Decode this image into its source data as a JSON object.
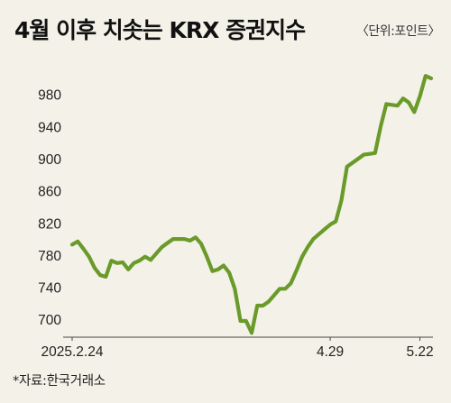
{
  "title": "4월 이후 치솟는 KRX 증권지수",
  "unit_label": "〈단위:포인트〉",
  "source_label": "*자료:한국거래소",
  "colors": {
    "line": "#6a9a2a",
    "background": "#f4f2e8",
    "axis": "#444444"
  },
  "chart_data": {
    "type": "line",
    "title": "4월 이후 치솟는 KRX 증권지수",
    "xlabel": "",
    "ylabel": "",
    "ylim": [
      680,
      1010
    ],
    "yticks": [
      700,
      740,
      780,
      820,
      860,
      900,
      940,
      980
    ],
    "ytick_labels": [
      "700",
      "740",
      "780",
      "820",
      "860",
      "900",
      "940",
      "980"
    ],
    "xtick_labels": [
      {
        "label": "2025.2.24",
        "index": 0
      },
      {
        "label": "4.29",
        "index": 46
      },
      {
        "label": "5.22",
        "index": 62
      }
    ],
    "grid": false,
    "series": [
      {
        "values": [
          793,
          797,
          788,
          778,
          764,
          755,
          753,
          773,
          770,
          771,
          762,
          770,
          773,
          778,
          774,
          782,
          790,
          795,
          800,
          800,
          800,
          798,
          802,
          794,
          778,
          760,
          762,
          767,
          758,
          738,
          698,
          698,
          683,
          717,
          717,
          722,
          730,
          738,
          738,
          745,
          761,
          778,
          790,
          800,
          806,
          812,
          818,
          822,
          848,
          890,
          895,
          900,
          905,
          906,
          907,
          940,
          968,
          967,
          966,
          975,
          970,
          958,
          978,
          1003,
          1000
        ]
      }
    ]
  }
}
